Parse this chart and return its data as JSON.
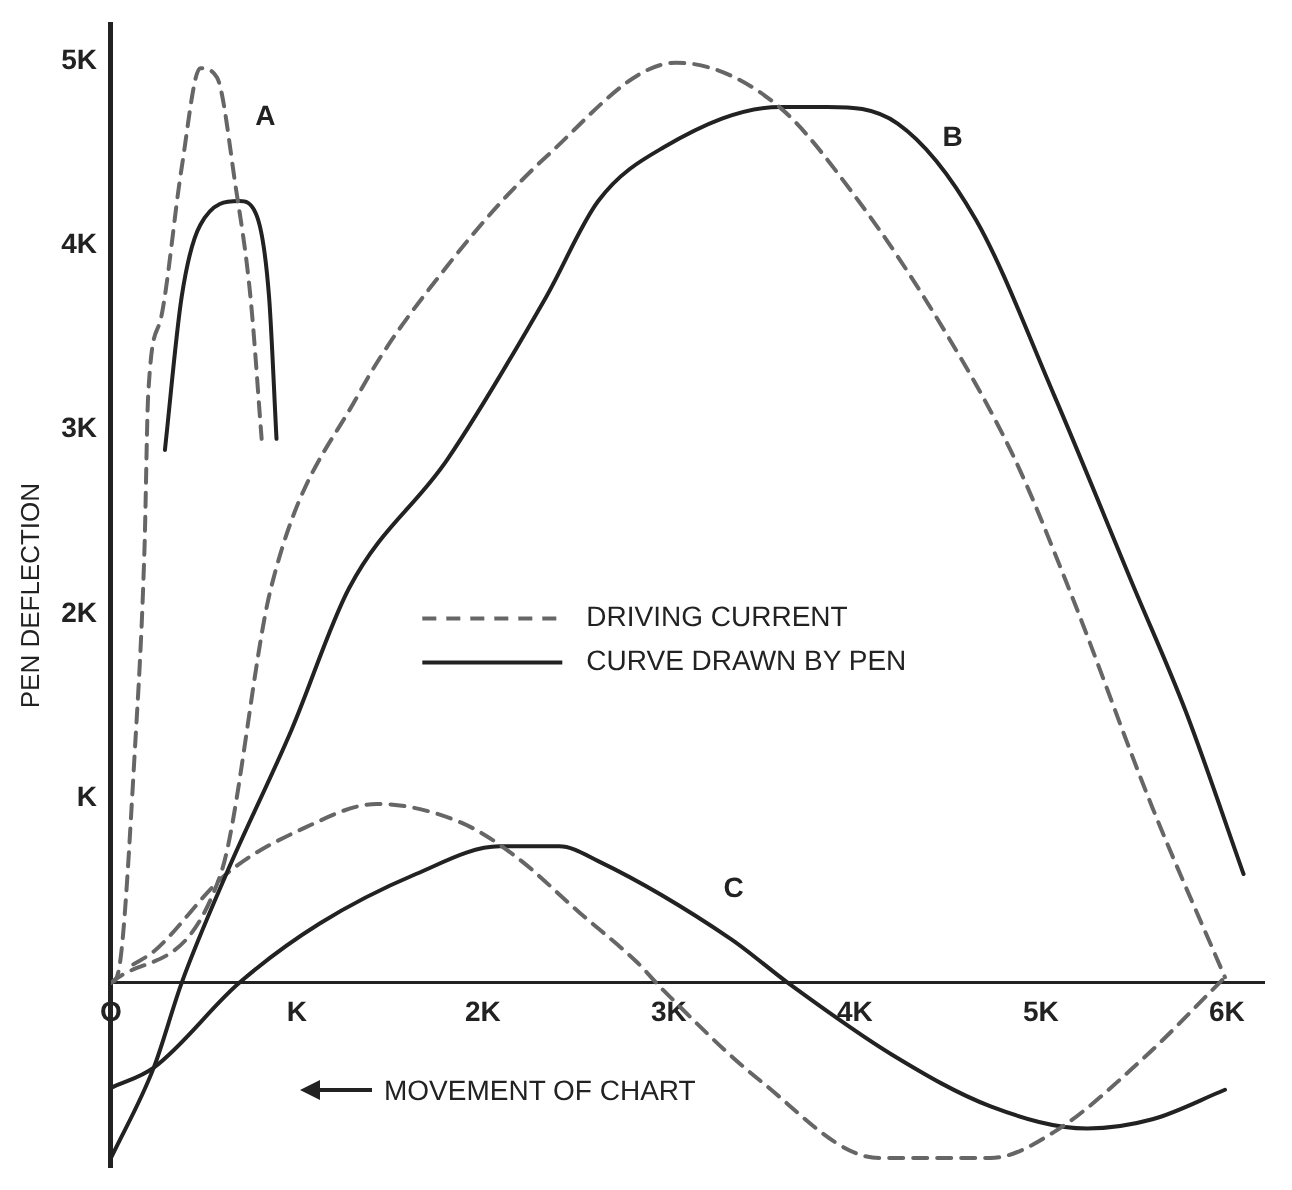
{
  "chart_data": {
    "type": "line",
    "xlabel": "MOVEMENT OF CHART",
    "ylabel": "PEN DEFLECTION",
    "xlim": [
      0,
      6.2
    ],
    "ylim": [
      -1,
      5.2
    ],
    "xticks": [
      {
        "value": 0,
        "label": "O"
      },
      {
        "value": 1,
        "label": "K"
      },
      {
        "value": 2,
        "label": "2K"
      },
      {
        "value": 3,
        "label": "3K"
      },
      {
        "value": 4,
        "label": "4K"
      },
      {
        "value": 5,
        "label": "5K"
      },
      {
        "value": 6,
        "label": "6K"
      }
    ],
    "yticks": [
      {
        "value": 1,
        "label": "K"
      },
      {
        "value": 2,
        "label": "2K"
      },
      {
        "value": 3,
        "label": "3K"
      },
      {
        "value": 4,
        "label": "4K"
      },
      {
        "value": 5,
        "label": "5K"
      }
    ],
    "grid": false,
    "legend": "center",
    "marker": "none",
    "series": [
      {
        "name": "DRIVING CURRENT",
        "color": "#666666",
        "line_style": "dashed",
        "x": [
          0,
          0.04,
          0.13,
          0.18,
          0.2,
          0.27,
          0.38,
          0.48,
          0.57,
          0.67,
          0.75,
          0.81
        ],
        "values": [
          0,
          0.06,
          1.29,
          2.35,
          3.19,
          3.61,
          4.42,
          4.96,
          4.91,
          4.32,
          3.72,
          2.95
        ]
      },
      {
        "name": "CURVE DRAWN BY PEN",
        "color": "#222222",
        "line_style": "solid",
        "x": [
          0.29,
          0.38,
          0.48,
          0.69,
          0.78,
          0.85,
          0.89
        ],
        "values": [
          2.89,
          3.72,
          4.11,
          4.24,
          4.17,
          3.72,
          2.95
        ]
      },
      {
        "color": "#666666",
        "line_style": "dashed",
        "x": [
          0,
          0.59,
          0.86,
          1.33,
          1.81,
          2.34,
          3.04,
          3.57,
          4.02,
          4.48,
          4.86,
          5.15,
          5.6,
          5.99
        ],
        "values": [
          0,
          0.59,
          2.14,
          3.19,
          3.89,
          4.48,
          4.99,
          4.77,
          4.24,
          3.54,
          2.84,
          2.14,
          0.95,
          0.03
        ]
      },
      {
        "color": "#222222",
        "line_style": "solid",
        "x": [
          0,
          0.23,
          0.38,
          0.62,
          0.97,
          1.28,
          1.81,
          2.34,
          2.62,
          2.97,
          3.6,
          3.85,
          4.23,
          4.65,
          5.07,
          5.49,
          5.78,
          6.09
        ],
        "values": [
          -0.95,
          -0.46,
          0,
          0.59,
          1.37,
          2.14,
          2.84,
          3.72,
          4.24,
          4.53,
          4.75,
          4.75,
          4.66,
          4.14,
          3.19,
          2.17,
          1.47,
          0.59
        ]
      },
      {
        "color": "#666666",
        "line_style": "dashed",
        "x": [
          0.12,
          0.23,
          0.62,
          1.04,
          1.43,
          1.88,
          2.17,
          2.52,
          2.83,
          2.97,
          3.49,
          4.13,
          4.73,
          5.07,
          5.54,
          5.99
        ],
        "values": [
          0.1,
          0.17,
          0.59,
          0.84,
          0.97,
          0.87,
          0.69,
          0.38,
          0.11,
          -0.04,
          -0.53,
          -0.95,
          -0.95,
          -0.81,
          -0.42,
          0.03
        ]
      },
      {
        "color": "#222222",
        "line_style": "solid",
        "x": [
          0,
          0.23,
          0.69,
          1.12,
          1.64,
          2.09,
          2.41,
          2.62,
          3.33,
          3.64,
          4.2,
          4.73,
          5.25,
          5.6,
          5.99
        ],
        "values": [
          -0.57,
          -0.46,
          0,
          0.32,
          0.59,
          0.74,
          0.74,
          0.66,
          0.24,
          0,
          -0.39,
          -0.67,
          -0.79,
          -0.74,
          -0.58
        ]
      }
    ],
    "annotations": [
      "A",
      "B",
      "C"
    ]
  }
}
